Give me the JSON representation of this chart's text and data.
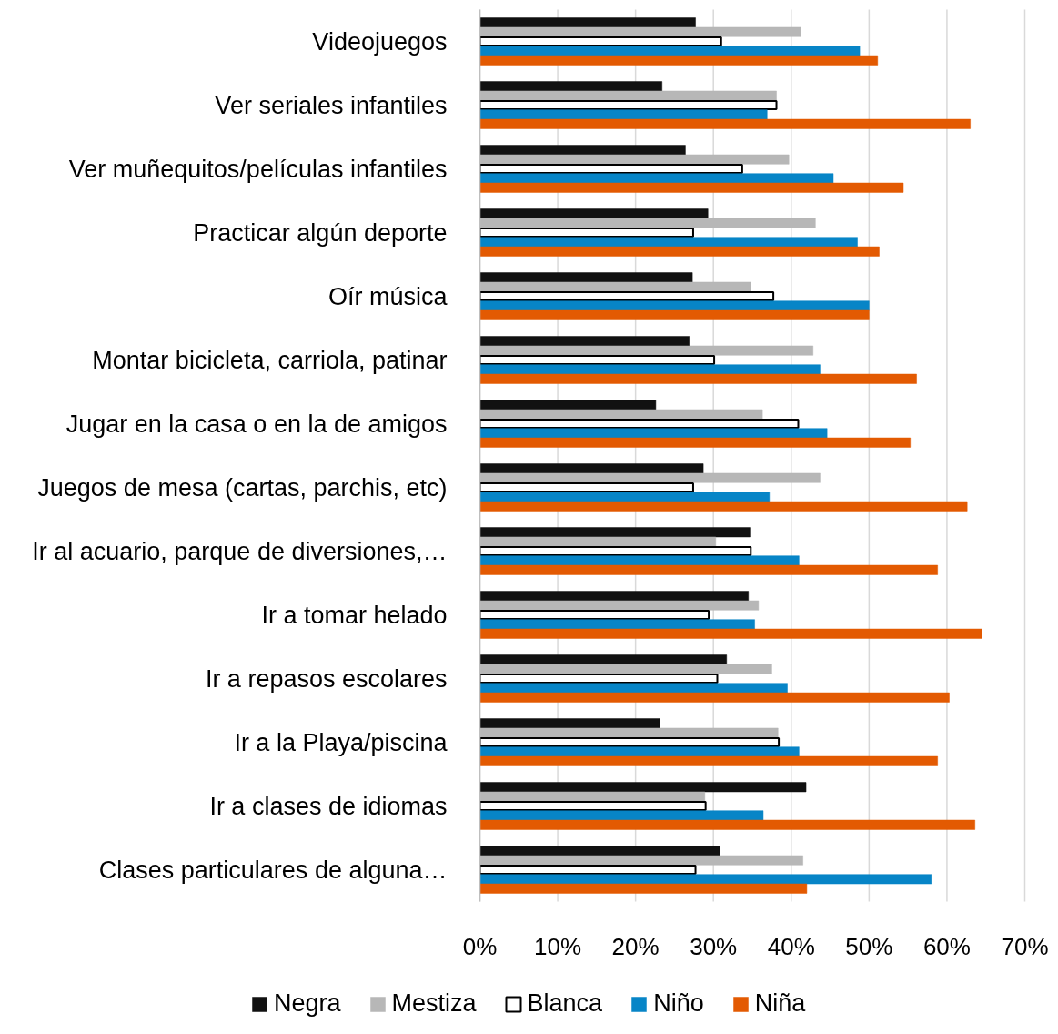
{
  "chart_data": {
    "type": "bar",
    "orientation": "horizontal",
    "categories": [
      "Videojuegos",
      "Ver seriales infantiles",
      "Ver muñequitos/películas infantiles",
      "Practicar algún deporte",
      "Oír música",
      "Montar bicicleta, carriola, patinar",
      "Jugar en la casa o en la de amigos",
      "Juegos de mesa (cartas, parchis, etc)",
      "Ir al acuario, parque de diversiones,…",
      "Ir a tomar helado",
      "Ir a repasos escolares",
      "Ir a la Playa/piscina",
      "Ir a clases de idiomas",
      "Clases particulares de alguna…"
    ],
    "series": [
      {
        "name": "Negra",
        "color": "#111111",
        "values": [
          27.7,
          23.4,
          26.4,
          29.3,
          27.3,
          26.9,
          22.6,
          28.7,
          34.7,
          34.5,
          31.7,
          23.1,
          41.9,
          30.8
        ]
      },
      {
        "name": "Mestiza",
        "color": "#b7b7b7",
        "values": [
          41.2,
          38.1,
          39.7,
          43.1,
          34.8,
          42.8,
          36.3,
          43.7,
          30.3,
          35.8,
          37.5,
          38.3,
          28.9,
          41.5
        ]
      },
      {
        "name": "Blanca",
        "color": "#ffffff",
        "values": [
          31.0,
          38.1,
          33.7,
          27.4,
          37.7,
          30.1,
          40.9,
          27.4,
          34.8,
          29.4,
          30.5,
          38.4,
          29.0,
          27.7
        ]
      },
      {
        "name": "Niño",
        "color": "#0785c7",
        "values": [
          48.8,
          36.9,
          45.4,
          48.5,
          50.0,
          43.7,
          44.6,
          37.2,
          41.0,
          35.3,
          39.5,
          41.0,
          36.4,
          58.0
        ]
      },
      {
        "name": "Niña",
        "color": "#e35a02",
        "values": [
          51.1,
          63.0,
          54.4,
          51.3,
          50.0,
          56.1,
          55.3,
          62.6,
          58.8,
          64.5,
          60.3,
          58.8,
          63.6,
          42.0
        ]
      }
    ],
    "xlim": [
      0,
      70
    ],
    "xticks": [
      {
        "value": 0,
        "label": "0%"
      },
      {
        "value": 10,
        "label": "10%"
      },
      {
        "value": 20,
        "label": "20%"
      },
      {
        "value": 30,
        "label": "30%"
      },
      {
        "value": 40,
        "label": "40%"
      },
      {
        "value": 50,
        "label": "50%"
      },
      {
        "value": 60,
        "label": "60%"
      },
      {
        "value": 70,
        "label": "70%"
      }
    ],
    "grid": "x",
    "legend": "bottom"
  }
}
